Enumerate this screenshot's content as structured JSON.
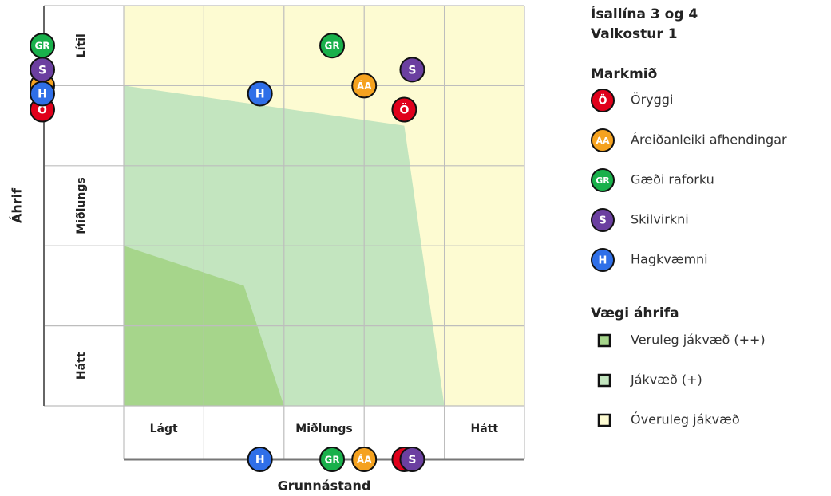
{
  "chart_data": {
    "type": "scatter",
    "title": "Ísallína 3 og 4",
    "subtitle": "Valkostur 1",
    "xlabel": "Grunnástand",
    "ylabel": "Áhrif",
    "x_categories": [
      "Lágt",
      null,
      "Miðlungs",
      null,
      "Hátt"
    ],
    "y_categories": [
      "Hátt",
      null,
      "Miðlungs",
      null,
      "Lítil"
    ],
    "xlim": [
      0,
      5
    ],
    "ylim": [
      0,
      5
    ],
    "xticks": [
      0,
      1,
      2,
      3,
      4,
      5
    ],
    "yticks": [
      0,
      1,
      2,
      3,
      4,
      5
    ],
    "grid": true,
    "legend_title": "Markmið",
    "series": [
      {
        "name": "Öryggi",
        "label": "Ö",
        "color": "#e0001b",
        "x": [
          3.5
        ],
        "y": [
          3.7
        ]
      },
      {
        "name": "Áreiðanleiki afhendingar",
        "label": "ÁA",
        "color": "#f5a21f",
        "x": [
          3.0
        ],
        "y": [
          4.0
        ]
      },
      {
        "name": "Gæði raforku",
        "label": "GR",
        "color": "#19b04b",
        "x": [
          2.6
        ],
        "y": [
          4.5
        ]
      },
      {
        "name": "Skilvirkni",
        "label": "S",
        "color": "#6b3fa0",
        "x": [
          3.6
        ],
        "y": [
          4.2
        ]
      },
      {
        "name": "Hagkvæmni",
        "label": "H",
        "color": "#2f6fe8",
        "x": [
          1.7
        ],
        "y": [
          3.9
        ]
      }
    ],
    "regions_title": "Vægi áhrifa",
    "regions": [
      {
        "name": "Veruleg jákvæð (++)",
        "color": "#a6d58b",
        "points": [
          [
            0,
            0
          ],
          [
            0,
            2
          ],
          [
            1.5,
            1.5
          ],
          [
            2,
            0
          ]
        ]
      },
      {
        "name": "Jákvæð (+)",
        "color": "#c3e5bf",
        "points": [
          [
            0,
            0
          ],
          [
            0,
            4
          ],
          [
            3.5,
            3.5
          ],
          [
            4,
            0
          ]
        ]
      },
      {
        "name": "Óveruleg jákvæð",
        "color": "#fdfbd2",
        "points": [
          [
            0,
            0
          ],
          [
            0,
            5
          ],
          [
            5,
            5
          ],
          [
            5,
            0
          ]
        ]
      }
    ]
  }
}
